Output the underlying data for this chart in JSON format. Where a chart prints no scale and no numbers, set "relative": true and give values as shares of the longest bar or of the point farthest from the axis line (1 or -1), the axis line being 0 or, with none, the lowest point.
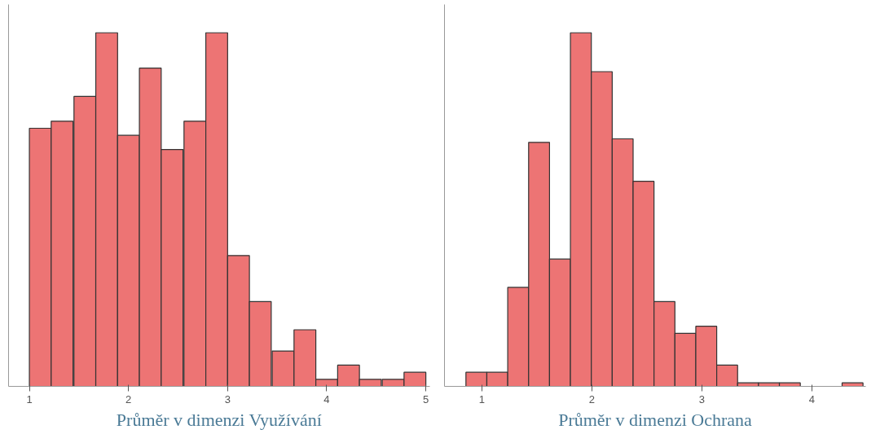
{
  "chart_data": [
    {
      "type": "bar",
      "relative": true,
      "xlabel": "Průměr v dimenzi Využívání",
      "x": [
        1.11,
        1.33,
        1.56,
        1.78,
        2,
        2.22,
        2.44,
        2.67,
        2.89,
        3.11,
        3.33,
        3.56,
        3.78,
        4,
        4.22,
        4.44,
        4.67,
        4.89
      ],
      "values": [
        0.73,
        0.75,
        0.82,
        1,
        0.71,
        0.9,
        0.67,
        0.75,
        1,
        0.37,
        0.24,
        0.1,
        0.16,
        0.02,
        0.06,
        0.02,
        0.02,
        0.04
      ],
      "color": "#ed7474",
      "xlim": [
        0.79,
        5.04
      ],
      "xticks": [
        1,
        2,
        3,
        4,
        5
      ]
    },
    {
      "type": "bar",
      "relative": true,
      "xlabel": "Průměr v dimenzi Ochrana",
      "x": [
        0.95,
        1.14,
        1.33,
        1.52,
        1.71,
        1.9,
        2.09,
        2.28,
        2.47,
        2.66,
        2.85,
        3.04,
        3.23,
        3.42,
        3.61,
        3.8,
        3.99,
        4.18,
        4.37
      ],
      "values": [
        0.04,
        0.04,
        0.28,
        0.69,
        0.36,
        1,
        0.89,
        0.7,
        0.58,
        0.24,
        0.15,
        0.17,
        0.06,
        0.01,
        0.01,
        0.01,
        0,
        0,
        0.01
      ],
      "color": "#ed7474",
      "xlim": [
        0.66,
        4.49
      ],
      "xticks": [
        1,
        2,
        3,
        4
      ]
    }
  ]
}
